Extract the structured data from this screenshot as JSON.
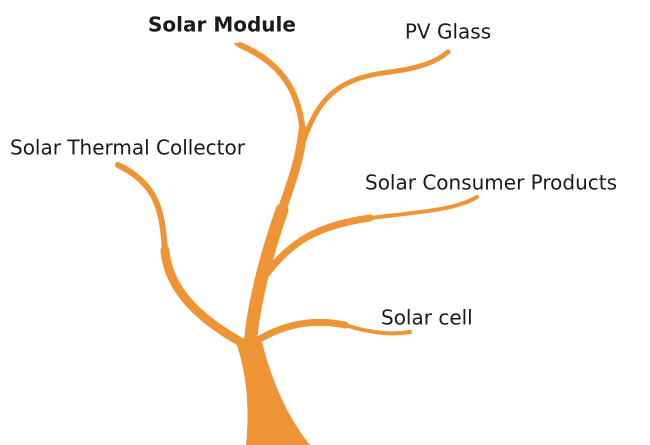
{
  "nodes": [
    {
      "label": "Solar Module"
    },
    {
      "label": "PV Glass"
    },
    {
      "label": "Solar Thermal Collector"
    },
    {
      "label": "Solar Consumer Products"
    },
    {
      "label": "Solar cell"
    }
  ]
}
